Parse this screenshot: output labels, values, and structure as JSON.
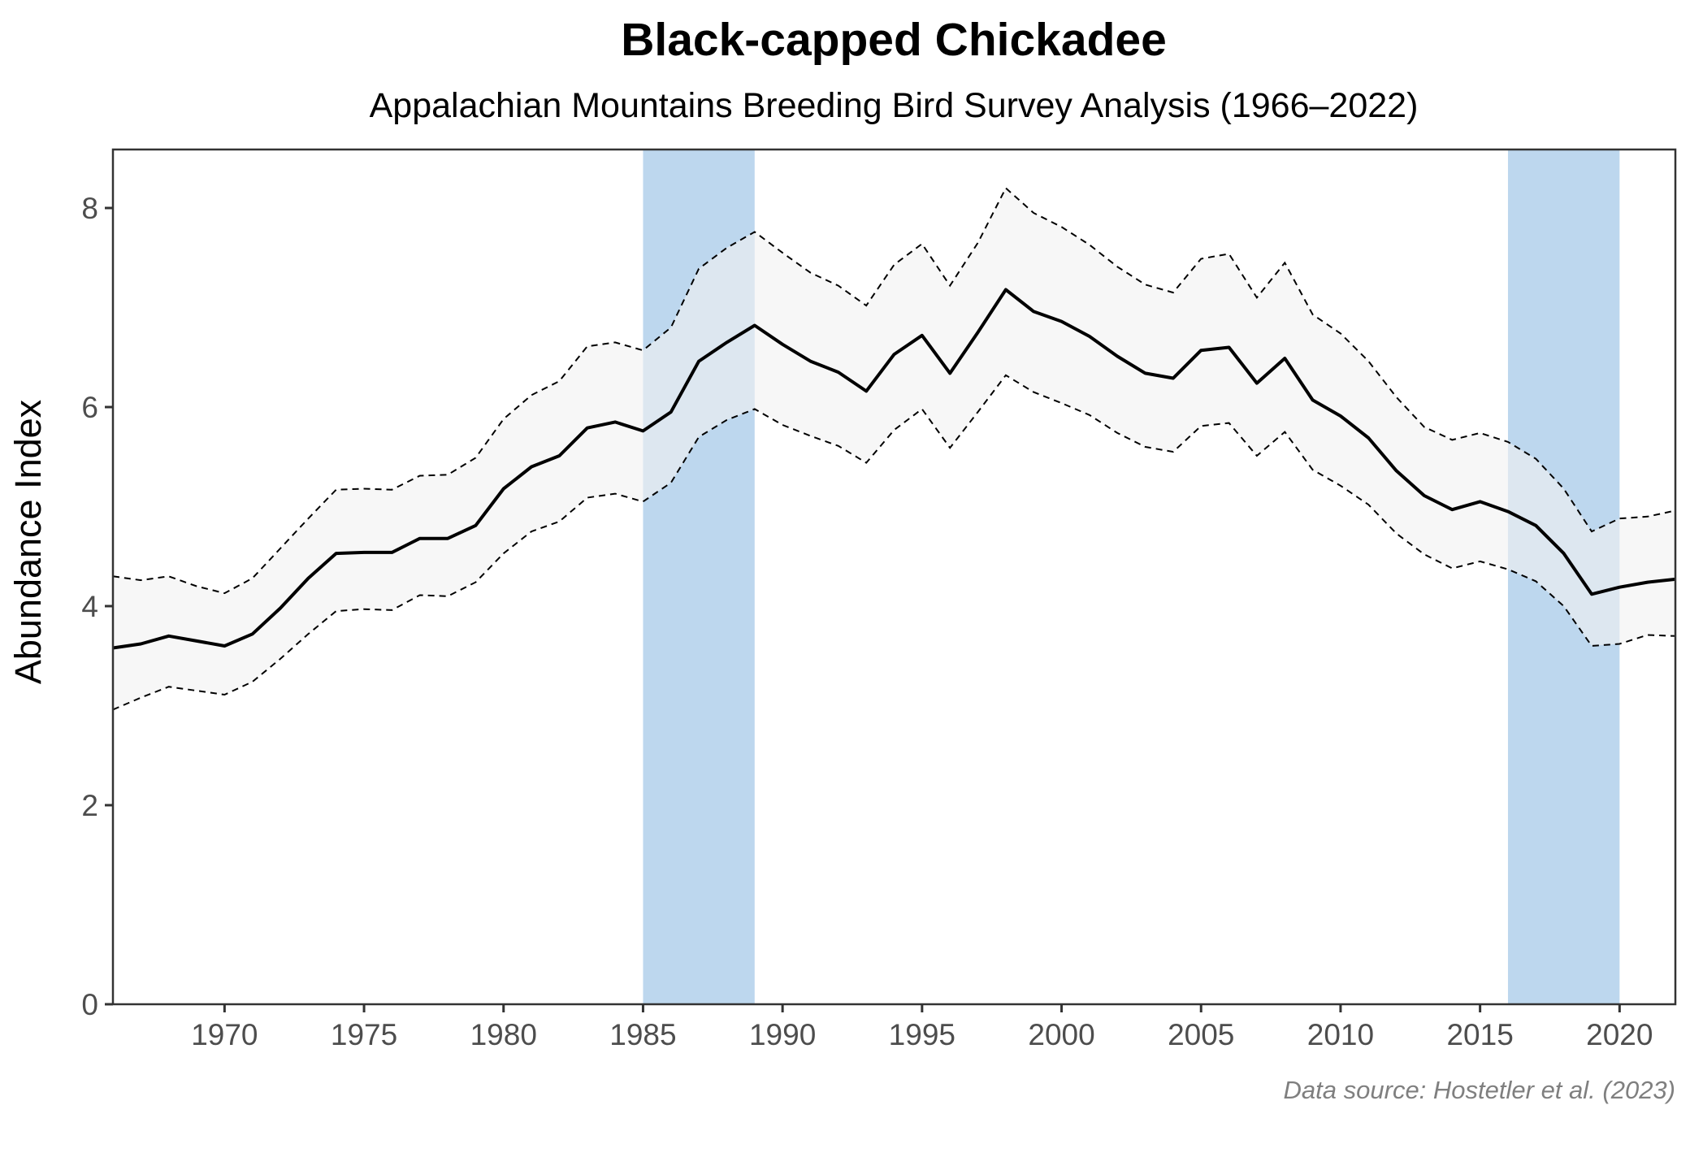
{
  "chart_data": {
    "type": "line",
    "title": "Black-capped Chickadee",
    "subtitle": "Appalachian Mountains Breeding Bird Survey Analysis (1966–2022)",
    "xlabel": "",
    "ylabel": "Abundance Index",
    "caption": "Data source: Hostetler et al. (2023)",
    "xlim": [
      1966,
      2022
    ],
    "ylim": [
      0,
      8.6
    ],
    "x_ticks": [
      1970,
      1975,
      1980,
      1985,
      1990,
      1995,
      2000,
      2005,
      2010,
      2015,
      2020
    ],
    "y_ticks": [
      0,
      2,
      4,
      6,
      8
    ],
    "grid": false,
    "highlight_periods": [
      {
        "start": 1985,
        "end": 1989,
        "color": "#BDD7EE"
      },
      {
        "start": 2016,
        "end": 2020,
        "color": "#BDD7EE"
      }
    ],
    "x": [
      1966,
      1967,
      1968,
      1969,
      1970,
      1971,
      1972,
      1973,
      1974,
      1975,
      1976,
      1977,
      1978,
      1979,
      1980,
      1981,
      1982,
      1983,
      1984,
      1985,
      1986,
      1987,
      1988,
      1989,
      1990,
      1991,
      1992,
      1993,
      1994,
      1995,
      1996,
      1997,
      1998,
      1999,
      2000,
      2001,
      2002,
      2003,
      2004,
      2005,
      2006,
      2007,
      2008,
      2009,
      2010,
      2011,
      2012,
      2013,
      2014,
      2015,
      2016,
      2017,
      2018,
      2019,
      2020,
      2021,
      2022
    ],
    "series": [
      {
        "name": "Abundance Index",
        "style": "solid",
        "color": "#000000",
        "values": [
          3.58,
          3.62,
          3.7,
          3.65,
          3.6,
          3.72,
          3.98,
          4.28,
          4.53,
          4.54,
          4.54,
          4.68,
          4.68,
          4.81,
          5.18,
          5.4,
          5.51,
          5.79,
          5.85,
          5.76,
          5.95,
          6.46,
          6.65,
          6.82,
          6.63,
          6.46,
          6.35,
          6.16,
          6.53,
          6.72,
          6.34,
          6.75,
          7.18,
          6.96,
          6.86,
          6.71,
          6.51,
          6.34,
          6.29,
          6.57,
          6.6,
          6.24,
          6.49,
          6.07,
          5.91,
          5.69,
          5.36,
          5.11,
          4.97,
          5.05,
          4.95,
          4.81,
          4.53,
          4.12,
          4.19,
          4.24,
          4.27
        ]
      },
      {
        "name": "Upper credible interval",
        "style": "dashed",
        "color": "#000000",
        "values": [
          4.3,
          4.26,
          4.3,
          4.2,
          4.13,
          4.28,
          4.58,
          4.88,
          5.17,
          5.18,
          5.17,
          5.31,
          5.32,
          5.49,
          5.88,
          6.12,
          6.26,
          6.61,
          6.65,
          6.57,
          6.8,
          7.39,
          7.6,
          7.76,
          7.55,
          7.35,
          7.22,
          7.02,
          7.43,
          7.64,
          7.22,
          7.65,
          8.2,
          7.95,
          7.81,
          7.63,
          7.41,
          7.23,
          7.15,
          7.49,
          7.54,
          7.1,
          7.45,
          6.93,
          6.74,
          6.46,
          6.1,
          5.8,
          5.67,
          5.74,
          5.65,
          5.48,
          5.18,
          4.75,
          4.88,
          4.9,
          4.96
        ]
      },
      {
        "name": "Lower credible interval",
        "style": "dashed",
        "color": "#000000",
        "values": [
          2.96,
          3.08,
          3.19,
          3.15,
          3.11,
          3.24,
          3.47,
          3.72,
          3.95,
          3.97,
          3.96,
          4.11,
          4.1,
          4.24,
          4.53,
          4.75,
          4.85,
          5.09,
          5.13,
          5.05,
          5.24,
          5.7,
          5.87,
          5.98,
          5.82,
          5.71,
          5.61,
          5.44,
          5.77,
          5.98,
          5.59,
          5.95,
          6.32,
          6.15,
          6.04,
          5.92,
          5.74,
          5.6,
          5.55,
          5.81,
          5.84,
          5.51,
          5.75,
          5.37,
          5.21,
          5.02,
          4.73,
          4.52,
          4.38,
          4.45,
          4.37,
          4.25,
          4.0,
          3.6,
          3.62,
          3.71,
          3.7
        ]
      }
    ],
    "ribbon_color": "#F2F2F2",
    "axis_color": "#333333"
  }
}
